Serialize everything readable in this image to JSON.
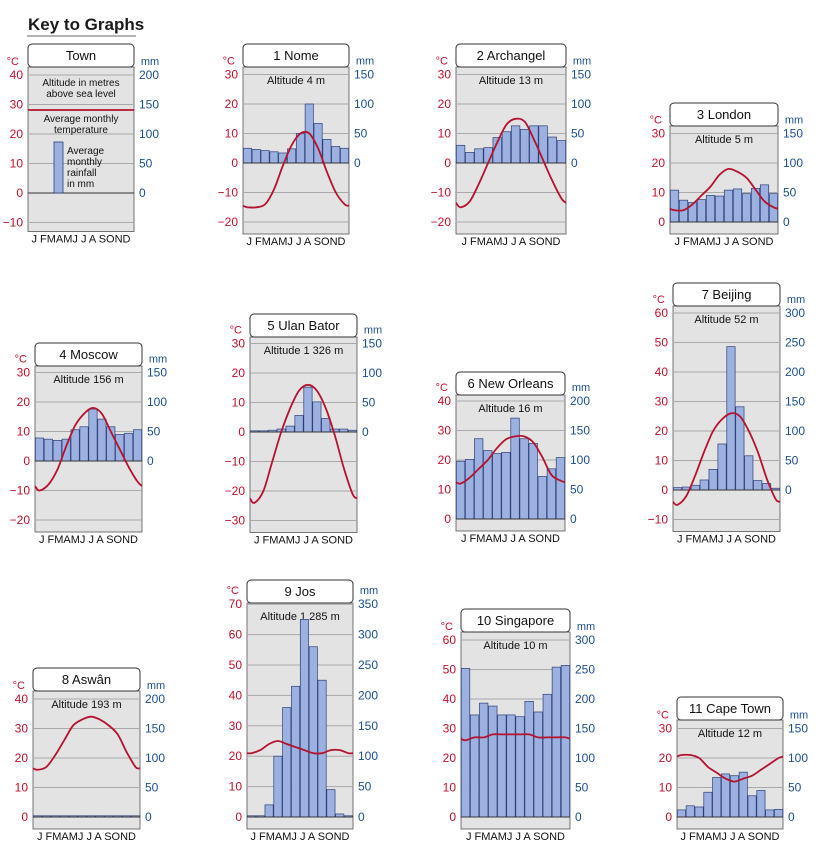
{
  "page": {
    "title": "Key to Graphs"
  },
  "legend": {
    "town_label": "Town",
    "temp_unit": "°C",
    "rain_unit": "mm",
    "altitude_label": [
      "Altitude in metres",
      "above sea level"
    ],
    "temp_label": [
      "Average monthly",
      "temperature"
    ],
    "rain_label": [
      "Average",
      "monthly",
      "rainfall",
      "in mm"
    ],
    "temp_ticks": [
      "40",
      "30",
      "20",
      "10",
      "0",
      "-10"
    ],
    "rain_ticks": [
      "200",
      "150",
      "100",
      "50",
      "0"
    ],
    "months": "J FMAMJ J A SOND"
  },
  "colors": {
    "temperature_line": "#b5122e",
    "rainfall_bar": "#9db1e0",
    "bar_border": "#2b3f7a",
    "panel_bg": "#e3e3e3",
    "temp_axis": "#c0102a",
    "rain_axis": "#1b4f8f"
  },
  "chart_data": [
    {
      "type": "bar",
      "title": "1 Nome",
      "subtitle": "Altitude 4 m",
      "months": "J FMAMJ J A SOND",
      "temp_ticks": [
        30,
        20,
        10,
        0,
        -10,
        -20
      ],
      "rain_ticks": [
        150,
        100,
        50,
        0
      ],
      "ylim_temp": [
        -20,
        30
      ],
      "ylim_rain": [
        0,
        150
      ],
      "temperature": [
        -15,
        -15,
        -14,
        -9,
        -1,
        6,
        10,
        10,
        5,
        -3,
        -10,
        -14
      ],
      "rainfall": [
        25,
        23,
        21,
        19,
        17,
        24,
        50,
        100,
        67,
        40,
        28,
        25
      ]
    },
    {
      "type": "bar",
      "title": "2 Archangel",
      "subtitle": "Altitude 13 m",
      "months": "J FMAMJ J A SOND",
      "temp_ticks": [
        30,
        20,
        10,
        0,
        -10,
        -20
      ],
      "rain_ticks": [
        150,
        100,
        50,
        0
      ],
      "ylim_temp": [
        -20,
        30
      ],
      "ylim_rain": [
        0,
        150
      ],
      "temperature": [
        -15,
        -13,
        -7,
        0,
        7,
        13,
        15,
        14,
        8,
        1,
        -6,
        -12
      ],
      "rainfall": [
        30,
        18,
        24,
        26,
        43,
        53,
        63,
        57,
        63,
        63,
        44,
        38
      ]
    },
    {
      "type": "bar",
      "title": "3 London",
      "subtitle": "Altitude 5 m",
      "months": "J FMAMJ J A SOND",
      "temp_ticks": [
        30,
        20,
        10,
        0
      ],
      "rain_ticks": [
        150,
        100,
        50,
        0
      ],
      "ylim_temp": [
        0,
        30
      ],
      "ylim_rain": [
        0,
        150
      ],
      "temperature": [
        4,
        4,
        6,
        9,
        12,
        16,
        18,
        17,
        15,
        11,
        7,
        5
      ],
      "rainfall": [
        54,
        37,
        33,
        38,
        45,
        44,
        54,
        56,
        48,
        57,
        63,
        48
      ]
    },
    {
      "type": "bar",
      "title": "4 Moscow",
      "subtitle": "Altitude 156 m",
      "months": "J FMAMJ J A SOND",
      "temp_ticks": [
        30,
        20,
        10,
        0,
        -10,
        -20
      ],
      "rain_ticks": [
        150,
        100,
        50,
        0
      ],
      "ylim_temp": [
        -20,
        30
      ],
      "ylim_rain": [
        0,
        150
      ],
      "temperature": [
        -10,
        -8,
        -3,
        5,
        12,
        16,
        18,
        16,
        10,
        4,
        -2,
        -7
      ],
      "rainfall": [
        39,
        37,
        35,
        37,
        53,
        58,
        88,
        71,
        58,
        45,
        47,
        53
      ]
    },
    {
      "type": "bar",
      "title": "5 Ulan Bator",
      "subtitle": "Altitude 1 326 m",
      "months": "J FMAMJ J A SOND",
      "temp_ticks": [
        30,
        20,
        10,
        0,
        -10,
        -20,
        -30
      ],
      "rain_ticks": [
        150,
        100,
        50,
        0
      ],
      "ylim_temp": [
        -30,
        30
      ],
      "ylim_rain": [
        0,
        150
      ],
      "temperature": [
        -24,
        -20,
        -10,
        0,
        8,
        14,
        16,
        14,
        8,
        -1,
        -12,
        -21
      ],
      "rainfall": [
        2,
        2,
        3,
        5,
        10,
        28,
        76,
        51,
        23,
        5,
        5,
        3
      ]
    },
    {
      "type": "bar",
      "title": "6 New Orleans",
      "subtitle": "Altitude 16 m",
      "months": "J FMAMJ J A SOND",
      "temp_ticks": [
        40,
        30,
        20,
        10,
        0
      ],
      "rain_ticks": [
        200,
        150,
        100,
        50,
        0
      ],
      "ylim_temp": [
        0,
        40
      ],
      "ylim_rain": [
        0,
        200
      ],
      "temperature": [
        12,
        14,
        17,
        20,
        24,
        27,
        28,
        28,
        26,
        21,
        15,
        13
      ],
      "rainfall": [
        98,
        101,
        136,
        116,
        111,
        113,
        171,
        136,
        128,
        72,
        85,
        104
      ]
    },
    {
      "type": "bar",
      "title": "7 Beijing",
      "subtitle": "Altitude 52 m",
      "months": "J FMAMJ J A SOND",
      "temp_ticks": [
        60,
        50,
        40,
        30,
        20,
        10,
        0,
        -10
      ],
      "rain_ticks": [
        300,
        250,
        200,
        150,
        100,
        50,
        0
      ],
      "ylim_temp": [
        -10,
        60
      ],
      "ylim_rain": [
        0,
        300
      ],
      "temperature": [
        -5,
        -2,
        5,
        13,
        20,
        24,
        26,
        25,
        20,
        13,
        4,
        -3
      ],
      "rainfall": [
        4,
        5,
        8,
        17,
        35,
        78,
        243,
        141,
        58,
        16,
        11,
        3
      ]
    },
    {
      "type": "bar",
      "title": "8 Aswân",
      "subtitle": "Altitude 193 m",
      "months": "J FMAMJ J A SOND",
      "temp_ticks": [
        40,
        30,
        20,
        10,
        0
      ],
      "rain_ticks": [
        200,
        150,
        100,
        50,
        0
      ],
      "ylim_temp": [
        0,
        40
      ],
      "ylim_rain": [
        0,
        200
      ],
      "temperature": [
        16,
        17,
        21,
        26,
        31,
        33,
        34,
        33,
        31,
        28,
        22,
        17
      ],
      "rainfall": [
        0,
        0,
        0,
        0,
        0,
        0,
        0,
        0,
        0,
        0,
        0,
        0
      ]
    },
    {
      "type": "bar",
      "title": "9 Jos",
      "subtitle": "Altitude 1 285 m",
      "months": "J FMAMJ J A SOND",
      "temp_ticks": [
        70,
        60,
        50,
        40,
        30,
        20,
        10,
        0
      ],
      "rain_ticks": [
        350,
        300,
        250,
        200,
        150,
        100,
        50,
        0
      ],
      "ylim_temp": [
        0,
        70
      ],
      "ylim_rain": [
        0,
        350
      ],
      "temperature": [
        21,
        22,
        24,
        25,
        24,
        23,
        22,
        21,
        21,
        22,
        22,
        21
      ],
      "rainfall": [
        2,
        2,
        20,
        100,
        180,
        215,
        325,
        280,
        225,
        45,
        5,
        2
      ]
    },
    {
      "type": "bar",
      "title": "10 Singapore",
      "subtitle": "Altitude 10 m",
      "months": "J FMAMJ J A SOND",
      "temp_ticks": [
        60,
        50,
        40,
        30,
        20,
        10,
        0
      ],
      "rain_ticks": [
        300,
        250,
        200,
        150,
        100,
        50,
        0
      ],
      "ylim_temp": [
        0,
        60
      ],
      "ylim_rain": [
        0,
        300
      ],
      "temperature": [
        26,
        27,
        27,
        28,
        28,
        28,
        28,
        28,
        27,
        27,
        27,
        27
      ],
      "rainfall": [
        252,
        173,
        193,
        188,
        173,
        173,
        170,
        196,
        178,
        208,
        254,
        257
      ]
    },
    {
      "type": "bar",
      "title": "11 Cape Town",
      "subtitle": "Altitude 12 m",
      "months": "J FMAMJ J A SOND",
      "temp_ticks": [
        30,
        20,
        10,
        0
      ],
      "rain_ticks": [
        150,
        100,
        50,
        0
      ],
      "ylim_temp": [
        0,
        30
      ],
      "ylim_rain": [
        0,
        150
      ],
      "temperature": [
        21,
        21,
        20,
        17,
        15,
        13,
        12,
        13,
        14,
        16,
        18,
        20
      ],
      "rainfall": [
        12,
        19,
        17,
        42,
        67,
        73,
        70,
        76,
        36,
        45,
        12,
        13
      ]
    }
  ]
}
